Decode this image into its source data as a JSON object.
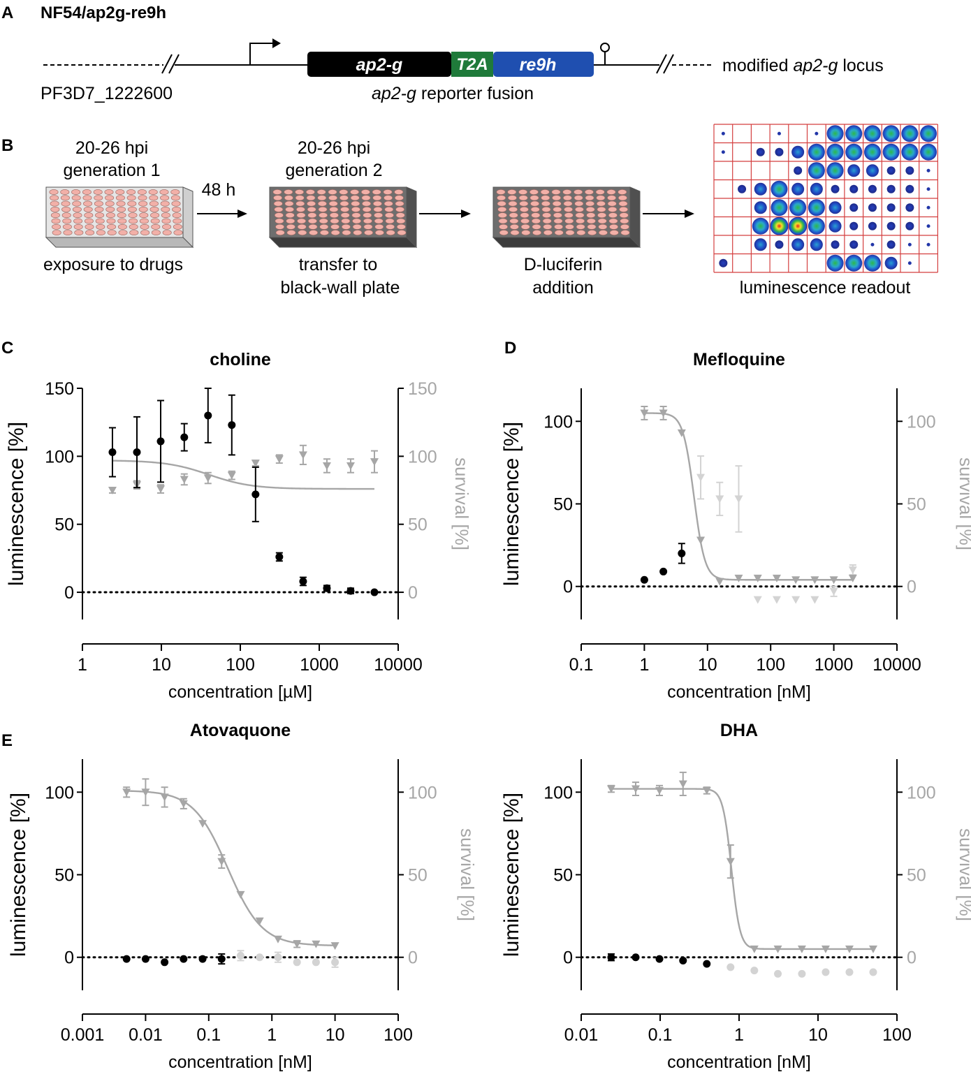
{
  "panel_a": {
    "label": "A",
    "title": "NF54/ap2g-re9h",
    "gene_id": "PF3D7_1222600",
    "seg_ap2g": "ap2-g",
    "seg_t2a": "T2A",
    "seg_re9h": "re9h",
    "fusion_label_italic": "ap2-g",
    "fusion_label_rest": " reporter fusion",
    "locus_pre": "modified ",
    "locus_italic": "ap2-g",
    "locus_post": " locus",
    "colors": {
      "ap2g": "#000000",
      "t2a": "#1f7a3a",
      "re9h": "#1f4fb0"
    }
  },
  "panel_b": {
    "label": "B",
    "step1": {
      "line1": "20-26 hpi",
      "line2": "generation 1",
      "caption": "exposure to drugs"
    },
    "arrow1": "48 h",
    "step2": {
      "line1": "20-26 hpi",
      "line2": "generation 2",
      "caption1": "transfer to",
      "caption2": "black-wall plate"
    },
    "step3": {
      "caption1": "D-luciferin",
      "caption2": "addition"
    },
    "step4": {
      "caption": "luminescence readout"
    }
  },
  "chart_data": [
    {
      "panel": "C",
      "type": "scatter",
      "title": "choline",
      "xlabel": "concentration [µM]",
      "ylabel": "luminescence [%]",
      "y2label": "survival [%]",
      "xscale": "log",
      "xlim": [
        1,
        10000
      ],
      "ylim": [
        -20,
        150
      ],
      "xticks": [
        "1",
        "10",
        "100",
        "1000",
        "10000"
      ],
      "yticks": [
        "0",
        "50",
        "100",
        "150"
      ],
      "y2ticks": [
        "0",
        "50",
        "100",
        "150"
      ],
      "luminescence": {
        "x": [
          2.4,
          4.9,
          9.8,
          19.5,
          39,
          78,
          156,
          312,
          625,
          1250,
          2500,
          5000
        ],
        "y": [
          103,
          103,
          111,
          114,
          130,
          123,
          72,
          26,
          8,
          3,
          1,
          0
        ],
        "err": [
          18,
          26,
          30,
          10,
          20,
          22,
          20,
          3,
          3,
          2,
          2,
          0
        ]
      },
      "survival": {
        "x": [
          2.4,
          4.9,
          9.8,
          19.5,
          39,
          78,
          156,
          312,
          625,
          1250,
          2500,
          5000
        ],
        "y": [
          75,
          79,
          76,
          83,
          84,
          86,
          95,
          98,
          101,
          93,
          93,
          96
        ],
        "err": [
          2,
          3,
          3,
          4,
          4,
          3,
          2,
          3,
          7,
          5,
          5,
          8
        ],
        "fit": {
          "bottom": 76,
          "top": 97,
          "ec50": 40,
          "hill": 1.6
        }
      }
    },
    {
      "panel": "D",
      "type": "scatter",
      "title": "Mefloquine",
      "xlabel": "concentration [nM]",
      "ylabel": "luminescence [%]",
      "y2label": "survival [%]",
      "xscale": "log",
      "xlim": [
        0.1,
        10000
      ],
      "ylim": [
        -20,
        120
      ],
      "xticks": [
        "0.1",
        "1",
        "10",
        "100",
        "1000",
        "10000"
      ],
      "yticks": [
        "0",
        "50",
        "100"
      ],
      "y2ticks": [
        "0",
        "50",
        "100"
      ],
      "luminescence": {
        "x": [
          1,
          2,
          3.9
        ],
        "y": [
          4,
          9,
          20
        ],
        "err": [
          0,
          0,
          6
        ]
      },
      "survival": {
        "x": [
          1,
          2,
          3.9,
          7.8,
          15.6,
          31.2,
          62.5,
          125,
          250,
          500,
          1000,
          2000
        ],
        "y": [
          105,
          105,
          93,
          28,
          3,
          5,
          5,
          5,
          4,
          4,
          4,
          5
        ],
        "err": [
          4,
          4,
          0,
          0,
          0,
          0,
          0,
          0,
          0,
          0,
          0,
          0
        ],
        "fit": {
          "bottom": 4,
          "top": 105,
          "ec50": 6.1,
          "hill": 5
        }
      },
      "excluded_survival": {
        "x": [
          7.8,
          15.6,
          31.2,
          62.5,
          125,
          250,
          500,
          1000,
          2000
        ],
        "y": [
          66,
          53,
          53,
          -8,
          -8,
          -8,
          -8,
          -3,
          10
        ],
        "err": [
          13,
          10,
          20,
          0,
          0,
          0,
          0,
          3,
          3
        ]
      }
    },
    {
      "panel": "E",
      "type": "scatter",
      "title": "Atovaquone",
      "xlabel": "concentration [nM]",
      "ylabel": "luminescence [%]",
      "y2label": "survival [%]",
      "xscale": "log",
      "xlim": [
        0.001,
        100
      ],
      "ylim": [
        -20,
        120
      ],
      "xticks": [
        "0.001",
        "0.01",
        "0.1",
        "1",
        "10",
        "100"
      ],
      "yticks": [
        "0",
        "50",
        "100"
      ],
      "y2ticks": [
        "0",
        "50",
        "100"
      ],
      "luminescence": {
        "x": [
          0.005,
          0.01,
          0.02,
          0.04,
          0.08,
          0.16
        ],
        "y": [
          -1,
          -1,
          -3,
          -1,
          -1,
          -1
        ],
        "err": [
          0,
          0,
          0,
          0,
          0,
          3
        ]
      },
      "excluded_luminescence": {
        "x": [
          0.32,
          0.64,
          1.25,
          2.5,
          5,
          10
        ],
        "y": [
          1,
          0,
          0,
          -3,
          -3,
          -3
        ],
        "err": [
          3,
          0,
          3,
          0,
          0,
          3
        ]
      },
      "survival": {
        "x": [
          0.005,
          0.01,
          0.02,
          0.04,
          0.08,
          0.16,
          0.32,
          0.64,
          1.25,
          2.5,
          5,
          10
        ],
        "y": [
          100,
          100,
          97,
          93,
          81,
          58,
          38,
          22,
          11,
          8,
          8,
          7
        ],
        "err": [
          3,
          8,
          6,
          3,
          0,
          4,
          0,
          0,
          0,
          2,
          0,
          0
        ],
        "fit": {
          "bottom": 7,
          "top": 101,
          "ec50": 0.2,
          "hill": 1.6
        }
      }
    },
    {
      "panel": "E2",
      "type": "scatter",
      "title": "DHA",
      "xlabel": "concentration [nM]",
      "ylabel": "luminescence [%]",
      "y2label": "survival [%]",
      "xscale": "log",
      "xlim": [
        0.01,
        100
      ],
      "ylim": [
        -20,
        120
      ],
      "xticks": [
        "0.01",
        "0.1",
        "1",
        "10",
        "100"
      ],
      "yticks": [
        "0",
        "50",
        "100"
      ],
      "y2ticks": [
        "0",
        "50",
        "100"
      ],
      "luminescence": {
        "x": [
          0.024,
          0.049,
          0.098,
          0.195,
          0.39
        ],
        "y": [
          0,
          0,
          -1,
          -2,
          -4
        ],
        "err": [
          2,
          0,
          0,
          0,
          0
        ]
      },
      "excluded_luminescence": {
        "x": [
          0.78,
          1.56,
          3.1,
          6.25,
          12.5,
          25,
          50
        ],
        "y": [
          -6,
          -8,
          -10,
          -10,
          -9,
          -9,
          -9
        ],
        "err": [
          0,
          0,
          0,
          0,
          0,
          0,
          0
        ]
      },
      "survival": {
        "x": [
          0.024,
          0.049,
          0.098,
          0.195,
          0.39,
          0.78,
          1.56,
          3.1,
          6.25,
          12.5,
          25,
          50
        ],
        "y": [
          102,
          102,
          101,
          105,
          101,
          58,
          5,
          5,
          5,
          5,
          5,
          5
        ],
        "err": [
          2,
          4,
          3,
          7,
          2,
          10,
          0,
          0,
          0,
          0,
          0,
          0
        ],
        "fit": {
          "bottom": 5,
          "top": 102,
          "ec50": 0.8,
          "hill": 8
        }
      }
    }
  ],
  "panel_labels": {
    "c": "C",
    "d": "D",
    "e": "E"
  },
  "colors": {
    "lum": "#000000",
    "surv": "#a6a6a6",
    "excluded": "#d3d3d3",
    "grid_red": "#d43f3f",
    "well": "#f2b0a8"
  }
}
